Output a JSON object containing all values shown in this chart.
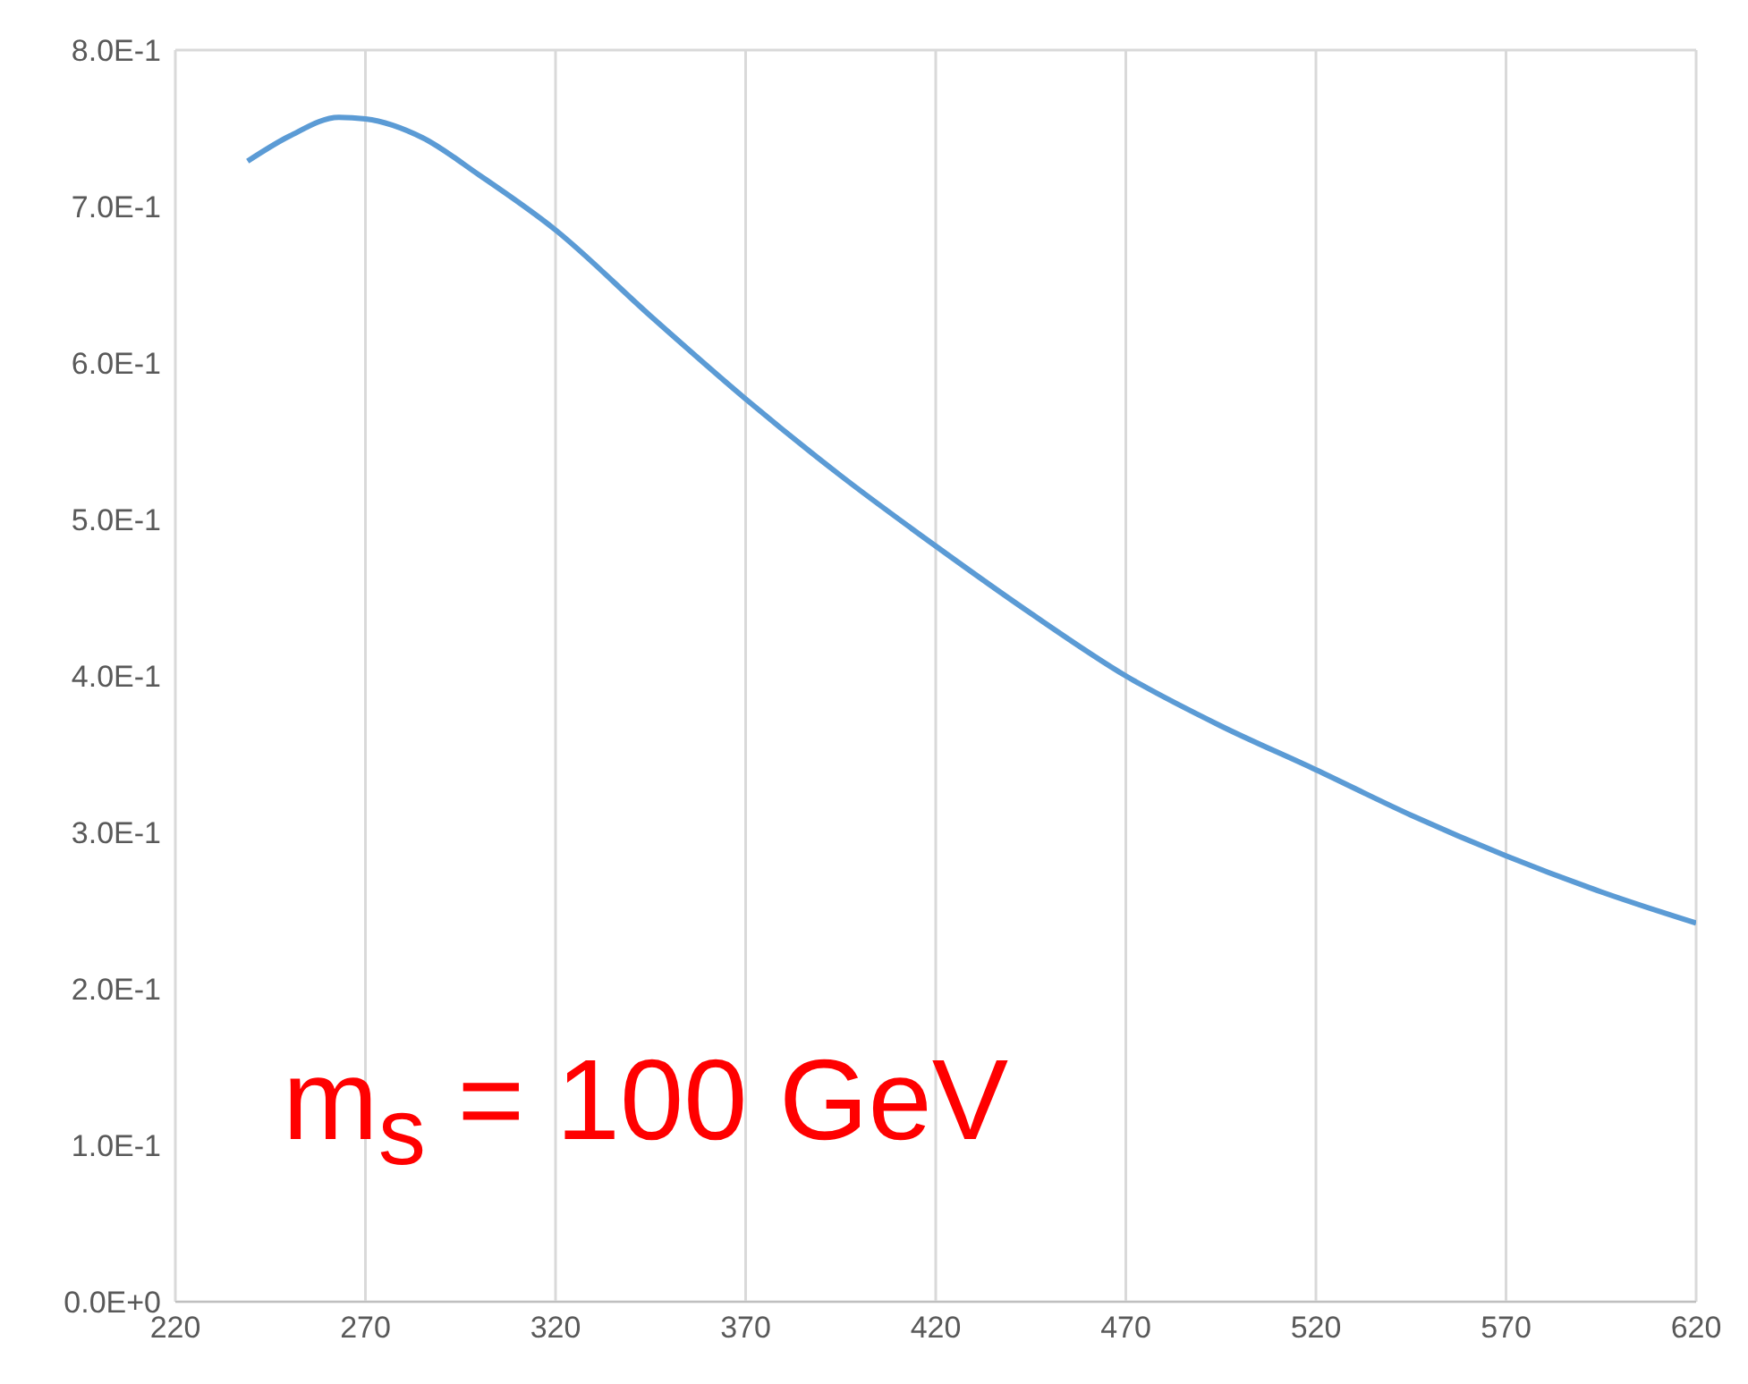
{
  "chart_data": {
    "type": "line",
    "x": [
      239,
      250,
      263,
      270,
      285,
      300,
      320,
      345,
      370,
      395,
      420,
      445,
      470,
      495,
      520,
      545,
      570,
      595,
      620
    ],
    "series": [
      {
        "color": "#5b9bd5",
        "values": [
          0.729,
          0.745,
          0.757,
          0.756,
          0.744,
          0.72,
          0.685,
          0.63,
          0.577,
          0.528,
          0.483,
          0.44,
          0.4,
          0.368,
          0.34,
          0.311,
          0.285,
          0.262,
          0.242
        ]
      }
    ],
    "xlim": [
      220,
      620
    ],
    "xticks": [
      220,
      270,
      320,
      370,
      420,
      470,
      520,
      570,
      620
    ],
    "ylim": [
      0,
      0.8
    ],
    "yticks": [
      {
        "value": 0,
        "label": "0.0E+0"
      },
      {
        "value": 0.1,
        "label": "1.0E-1"
      },
      {
        "value": 0.2,
        "label": "2.0E-1"
      },
      {
        "value": 0.3,
        "label": "3.0E-1"
      },
      {
        "value": 0.4,
        "label": "4.0E-1"
      },
      {
        "value": 0.5,
        "label": "5.0E-1"
      },
      {
        "value": 0.6,
        "label": "6.0E-1"
      },
      {
        "value": 0.7,
        "label": "7.0E-1"
      },
      {
        "value": 0.8,
        "label": "8.0E-1"
      }
    ],
    "grid": true,
    "marker": "none",
    "line_style": "solid",
    "annotations": [
      "m$_{s}$ = 100 GeV"
    ]
  }
}
